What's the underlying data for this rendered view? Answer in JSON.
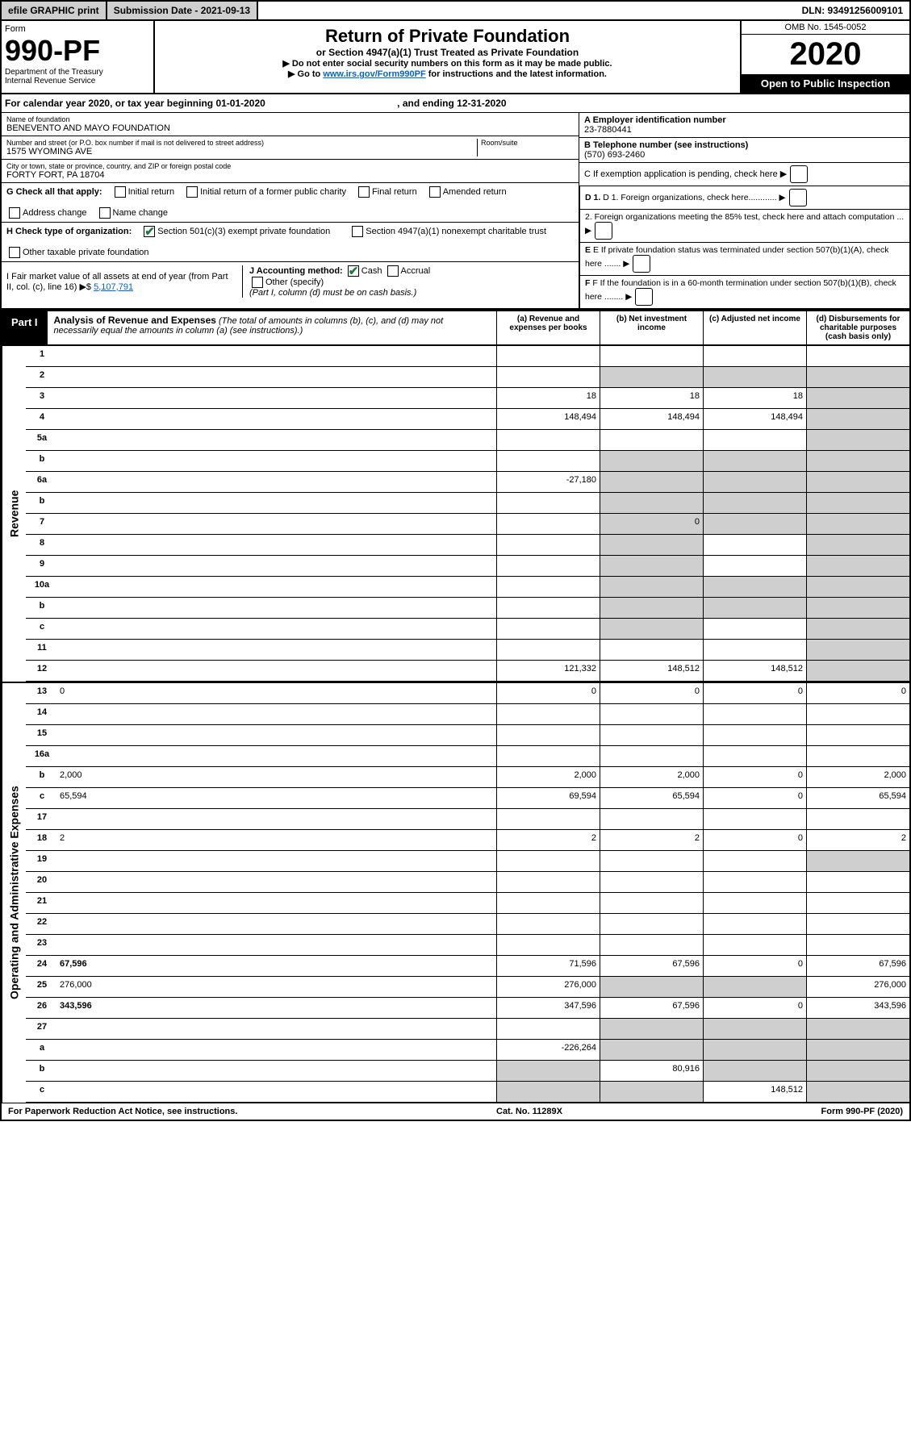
{
  "top": {
    "efile": "efile GRAPHIC print",
    "sub_label": "Submission Date - 2021-09-13",
    "dln": "DLN: 93491256009101"
  },
  "header": {
    "form_word": "Form",
    "form_num": "990-PF",
    "dept": "Department of the Treasury",
    "irs": "Internal Revenue Service",
    "title": "Return of Private Foundation",
    "subtitle": "or Section 4947(a)(1) Trust Treated as Private Foundation",
    "instr1": "▶ Do not enter social security numbers on this form as it may be made public.",
    "instr2_pre": "▶ Go to ",
    "instr2_link": "www.irs.gov/Form990PF",
    "instr2_post": " for instructions and the latest information.",
    "omb": "OMB No. 1545-0052",
    "year": "2020",
    "open": "Open to Public Inspection"
  },
  "cal": {
    "text": "For calendar year 2020, or tax year beginning 01-01-2020",
    "end": ", and ending 12-31-2020"
  },
  "info": {
    "name_label": "Name of foundation",
    "name": "BENEVENTO AND MAYO FOUNDATION",
    "addr_label": "Number and street (or P.O. box number if mail is not delivered to street address)",
    "addr": "1575 WYOMING AVE",
    "room_label": "Room/suite",
    "city_label": "City or town, state or province, country, and ZIP or foreign postal code",
    "city": "FORTY FORT, PA  18704",
    "ein_label": "A Employer identification number",
    "ein": "23-7880441",
    "tel_label": "B Telephone number (see instructions)",
    "tel": "(570) 693-2460",
    "c": "C If exemption application is pending, check here",
    "g_label": "G Check all that apply:",
    "g_opts": [
      "Initial return",
      "Initial return of a former public charity",
      "Final return",
      "Amended return",
      "Address change",
      "Name change"
    ],
    "h_label": "H Check type of organization:",
    "h_opt1": "Section 501(c)(3) exempt private foundation",
    "h_opt2": "Section 4947(a)(1) nonexempt charitable trust",
    "h_opt3": "Other taxable private foundation",
    "i_label": "I Fair market value of all assets at end of year (from Part II, col. (c), line 16) ▶$",
    "i_val": "5,107,791",
    "j_label": "J Accounting method:",
    "j_cash": "Cash",
    "j_accrual": "Accrual",
    "j_other": "Other (specify)",
    "j_note": "(Part I, column (d) must be on cash basis.)",
    "d1": "D 1. Foreign organizations, check here............",
    "d2": "2. Foreign organizations meeting the 85% test, check here and attach computation ...",
    "e": "E If private foundation status was terminated under section 507(b)(1)(A), check here .......",
    "f": "F If the foundation is in a 60-month termination under section 507(b)(1)(B), check here ........"
  },
  "part1": {
    "tab": "Part I",
    "title": "Analysis of Revenue and Expenses",
    "note": "(The total of amounts in columns (b), (c), and (d) may not necessarily equal the amounts in column (a) (see instructions).)",
    "col_a": "(a) Revenue and expenses per books",
    "col_b": "(b) Net investment income",
    "col_c": "(c) Adjusted net income",
    "col_d": "(d) Disbursements for charitable purposes (cash basis only)"
  },
  "side_rev": "Revenue",
  "side_exp": "Operating and Administrative Expenses",
  "rows_rev": [
    {
      "n": "1",
      "d": "",
      "a": "",
      "b": "",
      "c": "",
      "bg": "",
      "cg": "",
      "dg": ""
    },
    {
      "n": "2",
      "d": "",
      "a": "",
      "b": "",
      "c": "",
      "bg": "g",
      "cg": "g",
      "dg": "g"
    },
    {
      "n": "3",
      "d": "",
      "a": "18",
      "b": "18",
      "c": "18",
      "bg": "",
      "cg": "",
      "dg": "g"
    },
    {
      "n": "4",
      "d": "",
      "a": "148,494",
      "b": "148,494",
      "c": "148,494",
      "bg": "",
      "cg": "",
      "dg": "g"
    },
    {
      "n": "5a",
      "d": "",
      "a": "",
      "b": "",
      "c": "",
      "bg": "",
      "cg": "",
      "dg": "g"
    },
    {
      "n": "b",
      "d": "",
      "a": "",
      "b": "",
      "c": "",
      "bg": "g",
      "cg": "g",
      "dg": "g"
    },
    {
      "n": "6a",
      "d": "",
      "a": "-27,180",
      "b": "",
      "c": "",
      "bg": "g",
      "cg": "g",
      "dg": "g"
    },
    {
      "n": "b",
      "d": "",
      "a": "",
      "b": "",
      "c": "",
      "bg": "g",
      "cg": "g",
      "dg": "g"
    },
    {
      "n": "7",
      "d": "",
      "a": "",
      "b": "0",
      "c": "",
      "bg": "g",
      "cg": "g",
      "dg": "g"
    },
    {
      "n": "8",
      "d": "",
      "a": "",
      "b": "",
      "c": "",
      "bg": "g",
      "cg": "",
      "dg": "g"
    },
    {
      "n": "9",
      "d": "",
      "a": "",
      "b": "",
      "c": "",
      "bg": "g",
      "cg": "",
      "dg": "g"
    },
    {
      "n": "10a",
      "d": "",
      "a": "",
      "b": "",
      "c": "",
      "bg": "g",
      "cg": "g",
      "dg": "g"
    },
    {
      "n": "b",
      "d": "",
      "a": "",
      "b": "",
      "c": "",
      "bg": "g",
      "cg": "g",
      "dg": "g"
    },
    {
      "n": "c",
      "d": "",
      "a": "",
      "b": "",
      "c": "",
      "bg": "g",
      "cg": "",
      "dg": "g"
    },
    {
      "n": "11",
      "d": "",
      "a": "",
      "b": "",
      "c": "",
      "bg": "",
      "cg": "",
      "dg": "g"
    },
    {
      "n": "12",
      "d": "",
      "a": "121,332",
      "b": "148,512",
      "c": "148,512",
      "bg": "",
      "cg": "",
      "dg": "g",
      "bold": true
    }
  ],
  "rows_exp": [
    {
      "n": "13",
      "d": "0",
      "a": "0",
      "b": "0",
      "c": "0"
    },
    {
      "n": "14",
      "d": "",
      "a": "",
      "b": "",
      "c": ""
    },
    {
      "n": "15",
      "d": "",
      "a": "",
      "b": "",
      "c": ""
    },
    {
      "n": "16a",
      "d": "",
      "a": "",
      "b": "",
      "c": ""
    },
    {
      "n": "b",
      "d": "2,000",
      "a": "2,000",
      "b": "2,000",
      "c": "0"
    },
    {
      "n": "c",
      "d": "65,594",
      "a": "69,594",
      "b": "65,594",
      "c": "0"
    },
    {
      "n": "17",
      "d": "",
      "a": "",
      "b": "",
      "c": ""
    },
    {
      "n": "18",
      "d": "2",
      "a": "2",
      "b": "2",
      "c": "0"
    },
    {
      "n": "19",
      "d": "",
      "a": "",
      "b": "",
      "c": "",
      "dg": "g"
    },
    {
      "n": "20",
      "d": "",
      "a": "",
      "b": "",
      "c": ""
    },
    {
      "n": "21",
      "d": "",
      "a": "",
      "b": "",
      "c": ""
    },
    {
      "n": "22",
      "d": "",
      "a": "",
      "b": "",
      "c": ""
    },
    {
      "n": "23",
      "d": "",
      "a": "",
      "b": "",
      "c": ""
    },
    {
      "n": "24",
      "d": "67,596",
      "a": "71,596",
      "b": "67,596",
      "c": "0",
      "bold": true
    },
    {
      "n": "25",
      "d": "276,000",
      "a": "276,000",
      "b": "",
      "c": "",
      "bg": "g",
      "cg": "g"
    },
    {
      "n": "26",
      "d": "343,596",
      "a": "347,596",
      "b": "67,596",
      "c": "0",
      "bold": true
    },
    {
      "n": "27",
      "d": "",
      "a": "",
      "b": "",
      "c": "",
      "bg": "g",
      "cg": "g",
      "dg": "g"
    },
    {
      "n": "a",
      "d": "",
      "a": "-226,264",
      "b": "",
      "c": "",
      "bold": true,
      "bg": "g",
      "cg": "g",
      "dg": "g"
    },
    {
      "n": "b",
      "d": "",
      "a": "",
      "b": "80,916",
      "c": "",
      "bold": true,
      "ag": "g",
      "cg": "g",
      "dg": "g"
    },
    {
      "n": "c",
      "d": "",
      "a": "",
      "b": "",
      "c": "148,512",
      "bold": true,
      "ag": "g",
      "bg": "g",
      "dg": "g"
    }
  ],
  "footer": {
    "left": "For Paperwork Reduction Act Notice, see instructions.",
    "mid": "Cat. No. 11289X",
    "right": "Form 990-PF (2020)"
  }
}
